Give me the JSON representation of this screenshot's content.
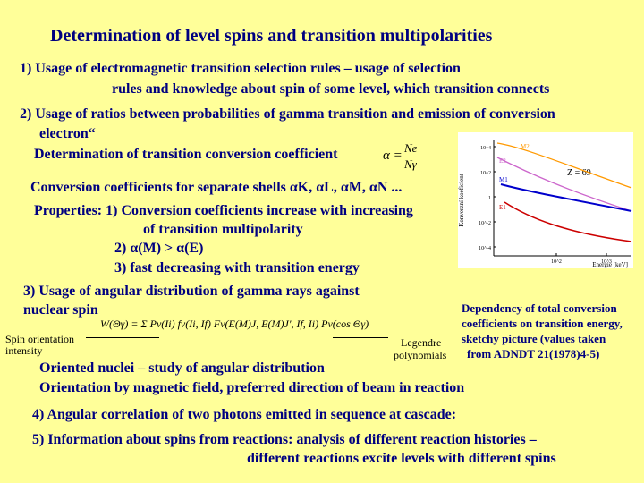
{
  "title": "Determination of level spins and transition multipolarities",
  "item1": {
    "line1": "1)  Usage of electromagnetic transition selection rules – usage of selection",
    "line2": "rules and knowledge about spin of some level, which transition connects"
  },
  "item2": {
    "line1": "2) Usage of ratios between probabilities of gamma transition and emission of conversion",
    "line2": "electron“",
    "line3": "Determination of transition conversion coefficient",
    "shells_prefix": "Conversion coefficients for separate shells",
    "shells": [
      "αK",
      "αL",
      "αM",
      "αN ..."
    ],
    "props1": "Properties: 1) Conversion coefficients increase with increasing",
    "props1b": "of transition multipolarity",
    "props2": "2) α(M) > α(E)",
    "props3": "3) fast decreasing with transition energy"
  },
  "formula_alpha": {
    "lhs": "α =",
    "num": "Ne",
    "den": "Nγ"
  },
  "item3": {
    "line1": "3) Usage of angular distribution of gamma rays against",
    "line2": "nuclear spin",
    "label_spin": [
      "Spin orientation",
      "intensity"
    ],
    "label_legendre": [
      "Legendre",
      "polynomials"
    ],
    "formula": "W(Θγ) = Σ Pν(Ii) fν(Ii, If) Fν(E(M)J, E(M)J′, If, Ii) Pν(cos Θγ)",
    "line3": "Oriented nuclei – study of angular distribution",
    "line4": "Orientation by magnetic field, preferred direction of beam in reaction"
  },
  "caption": [
    "Dependency of total conversion",
    "coefficients on transition energy,",
    "sketchy picture (values taken",
    "from ADNDT 21(1978)4-5)"
  ],
  "item4": "4) Angular correlation of two photons emitted in sequence at cascade:",
  "item5": {
    "line1": "5) Information about spins from reactions: analysis of different reaction histories –",
    "line2": "different reactions excite levels with different spins"
  },
  "colors": {
    "text": "#000080",
    "background": "#ffff99"
  },
  "chart_data": {
    "type": "line",
    "title": "",
    "xlabel": "Energie [keV]",
    "ylabel": "Konverzní koeficient",
    "log_x": true,
    "log_y": true,
    "annotation": "Z = 69",
    "y_ticks": [
      "10^4",
      "10^2",
      "1",
      "10^-2",
      "10^-4"
    ],
    "x_ticks": [
      "10^2",
      "10^3"
    ],
    "series": [
      {
        "name": "M2",
        "color": "#ff9900"
      },
      {
        "name": "E2",
        "color": "#cc66cc"
      },
      {
        "name": "M1",
        "color": "#0000cc"
      },
      {
        "name": "E1",
        "color": "#cc0000"
      }
    ]
  }
}
